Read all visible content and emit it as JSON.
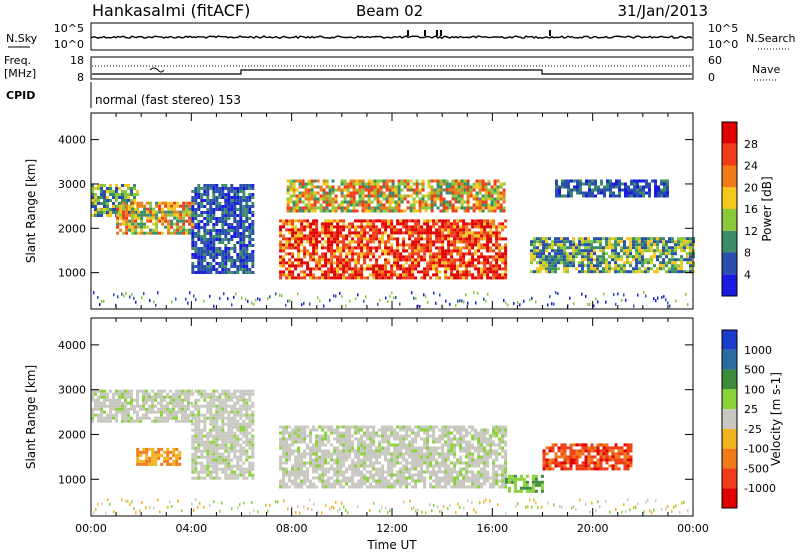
{
  "header": {
    "station": "Hankasalmi (fitACF)",
    "beam": "Beam 02",
    "date": "31/Jan/2013"
  },
  "strips": {
    "nsky_label": "N.Sky",
    "nsky_ticks": [
      "10^5",
      "10^0"
    ],
    "nsearch_label": "N.Search",
    "nsearch_ticks": [
      "10^5",
      "10^0"
    ],
    "freq_label_1": "Freq.",
    "freq_label_2": "[MHz]",
    "freq_ticks": [
      "18",
      "8"
    ],
    "nave_label": "Nave",
    "nave_ticks": [
      "60",
      "0"
    ],
    "cpid_label": "CPID",
    "cpid_text": "normal (fast stereo) 153"
  },
  "chart_data": [
    {
      "type": "heatmap",
      "title": "",
      "xlabel": "Time UT",
      "ylabel": "Slant Range [km]",
      "xticks": [
        "00:00",
        "04:00",
        "08:00",
        "12:00",
        "16:00",
        "20:00",
        "00:00"
      ],
      "yticks": [
        "1000",
        "2000",
        "3000",
        "4000"
      ],
      "xlim_hours": [
        0,
        24
      ],
      "ylim_km": [
        180,
        4600
      ],
      "colorbar_label": "Power [dB]",
      "colorbar_ticks": [
        "4",
        "8",
        "12",
        "16",
        "20",
        "24",
        "28"
      ],
      "colorbar_colors": [
        "#1a1ae0",
        "#2a4faa",
        "#3c8c6a",
        "#8ac83c",
        "#f2c81e",
        "#f07a18",
        "#f03c18",
        "#e00000"
      ],
      "regions": [
        {
          "t": [
            0.0,
            1.8
          ],
          "r": [
            2300,
            3000
          ],
          "level": "low-mid"
        },
        {
          "t": [
            1.0,
            4.0
          ],
          "r": [
            1900,
            2600
          ],
          "level": "mid"
        },
        {
          "t": [
            4.0,
            6.5
          ],
          "r": [
            1000,
            3000
          ],
          "level": "low"
        },
        {
          "t": [
            7.5,
            16.5
          ],
          "r": [
            850,
            2200
          ],
          "level": "high"
        },
        {
          "t": [
            7.8,
            16.5
          ],
          "r": [
            2400,
            3100
          ],
          "level": "mid"
        },
        {
          "t": [
            17.5,
            24.0
          ],
          "r": [
            1000,
            1800
          ],
          "level": "low-mid"
        },
        {
          "t": [
            18.5,
            23.0
          ],
          "r": [
            2700,
            3100
          ],
          "level": "low"
        }
      ]
    },
    {
      "type": "heatmap",
      "title": "",
      "xlabel": "Time UT",
      "ylabel": "Slant Range [km]",
      "xticks": [
        "00:00",
        "04:00",
        "08:00",
        "12:00",
        "16:00",
        "20:00",
        "00:00"
      ],
      "yticks": [
        "1000",
        "2000",
        "3000",
        "4000"
      ],
      "xlim_hours": [
        0,
        24
      ],
      "ylim_km": [
        180,
        4600
      ],
      "colorbar_label": "Velocity [m s-1]",
      "colorbar_ticks": [
        "1000",
        "500",
        "100",
        "25",
        "-25",
        "-100",
        "-500",
        "-1000"
      ],
      "colorbar_colors": [
        "#1a3cc8",
        "#2a6aa0",
        "#3c8c3c",
        "#8ad23c",
        "#c8c8c0",
        "#f2b41e",
        "#f07a18",
        "#f03c18",
        "#e00000"
      ],
      "regions": [
        {
          "t": [
            0.0,
            4.0
          ],
          "r": [
            2300,
            3000
          ],
          "velocity": "ground"
        },
        {
          "t": [
            4.0,
            6.5
          ],
          "r": [
            1000,
            3000
          ],
          "velocity": "ground"
        },
        {
          "t": [
            7.5,
            16.5
          ],
          "r": [
            850,
            2200
          ],
          "velocity": "ground"
        },
        {
          "t": [
            1.8,
            3.5
          ],
          "r": [
            1300,
            1700
          ],
          "velocity": "negative"
        },
        {
          "t": [
            18.0,
            21.5
          ],
          "r": [
            1200,
            1800
          ],
          "velocity": "strong negative"
        },
        {
          "t": [
            16.5,
            18.0
          ],
          "r": [
            700,
            1100
          ],
          "velocity": "positive"
        }
      ]
    }
  ]
}
